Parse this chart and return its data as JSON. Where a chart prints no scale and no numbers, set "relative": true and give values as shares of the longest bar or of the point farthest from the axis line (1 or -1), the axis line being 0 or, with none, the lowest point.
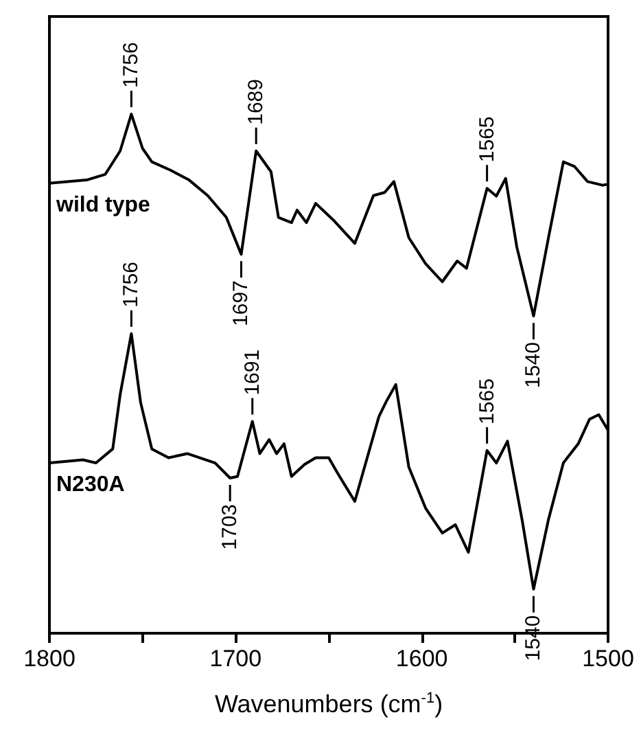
{
  "chart_data": {
    "type": "line",
    "relative": true,
    "xlabel": "Wavenumbers (cm$^{-1}$)",
    "xlim": [
      1800,
      1500
    ],
    "xticks": [
      1800,
      {
        "value": 1750,
        "label": null
      },
      1700,
      {
        "value": 1650,
        "label": null
      },
      1600,
      {
        "value": 1550,
        "label": null
      },
      1500
    ],
    "legend": false,
    "grid": false,
    "marker": "none",
    "line_style": "solid",
    "series": [
      {
        "name": "wild type",
        "color": "#000000",
        "x": [
          1800,
          1780,
          1770,
          1762,
          1756,
          1750,
          1745,
          1735,
          1725,
          1715,
          1705,
          1697,
          1689,
          1681,
          1677,
          1670,
          1667,
          1662,
          1657,
          1647,
          1636,
          1626,
          1620,
          1615,
          1607,
          1598,
          1589,
          1581,
          1576,
          1565,
          1560,
          1555,
          1549,
          1540,
          1532,
          1524,
          1518,
          1511,
          1503,
          1500
        ],
        "values": [
          0.867,
          0.873,
          0.884,
          0.929,
          1,
          0.934,
          0.908,
          0.892,
          0.873,
          0.843,
          0.801,
          0.73,
          0.929,
          0.889,
          0.801,
          0.791,
          0.815,
          0.791,
          0.828,
          0.794,
          0.751,
          0.843,
          0.849,
          0.87,
          0.762,
          0.712,
          0.677,
          0.717,
          0.703,
          0.857,
          0.842,
          0.876,
          0.744,
          0.611,
          0.762,
          0.908,
          0.899,
          0.87,
          0.863,
          0.865
        ]
      },
      {
        "name": "N230A",
        "color": "#000000",
        "x": [
          1800,
          1782,
          1775,
          1766,
          1762,
          1756,
          1751,
          1745,
          1736,
          1726,
          1711,
          1703,
          1699,
          1691,
          1687,
          1682,
          1678,
          1674,
          1670,
          1663,
          1657,
          1650,
          1645,
          1636,
          1623,
          1619,
          1614,
          1607,
          1598,
          1589,
          1582,
          1575,
          1565,
          1560,
          1554,
          1546,
          1540,
          1532,
          1524,
          1516,
          1510,
          1505,
          1500
        ],
        "values": [
          0.328,
          0.334,
          0.328,
          0.355,
          0.46,
          0.577,
          0.444,
          0.355,
          0.338,
          0.346,
          0.328,
          0.299,
          0.302,
          0.408,
          0.346,
          0.373,
          0.346,
          0.365,
          0.302,
          0.325,
          0.338,
          0.338,
          0.307,
          0.254,
          0.418,
          0.447,
          0.479,
          0.32,
          0.241,
          0.193,
          0.209,
          0.156,
          0.352,
          0.328,
          0.37,
          0.215,
          0.085,
          0.219,
          0.328,
          0.365,
          0.412,
          0.421,
          0.391
        ]
      }
    ],
    "annotations": [
      {
        "text": "1756",
        "x": 1756,
        "y": 1
      },
      {
        "text": "1689",
        "x": 1689,
        "y": 0.929
      },
      {
        "text": "1697",
        "x": 1697,
        "y": 0.73
      },
      {
        "text": "1565",
        "x": 1565,
        "y": 0.857
      },
      {
        "text": "1540",
        "x": 1540,
        "y": 0.611
      },
      {
        "text": "1756",
        "x": 1756,
        "y": 0.577
      },
      {
        "text": "1691",
        "x": 1691,
        "y": 0.408
      },
      {
        "text": "1703",
        "x": 1703,
        "y": 0.299
      },
      {
        "text": "1565",
        "x": 1565,
        "y": 0.352
      },
      {
        "text": "1540",
        "x": 1540,
        "y": 0.085
      }
    ]
  }
}
